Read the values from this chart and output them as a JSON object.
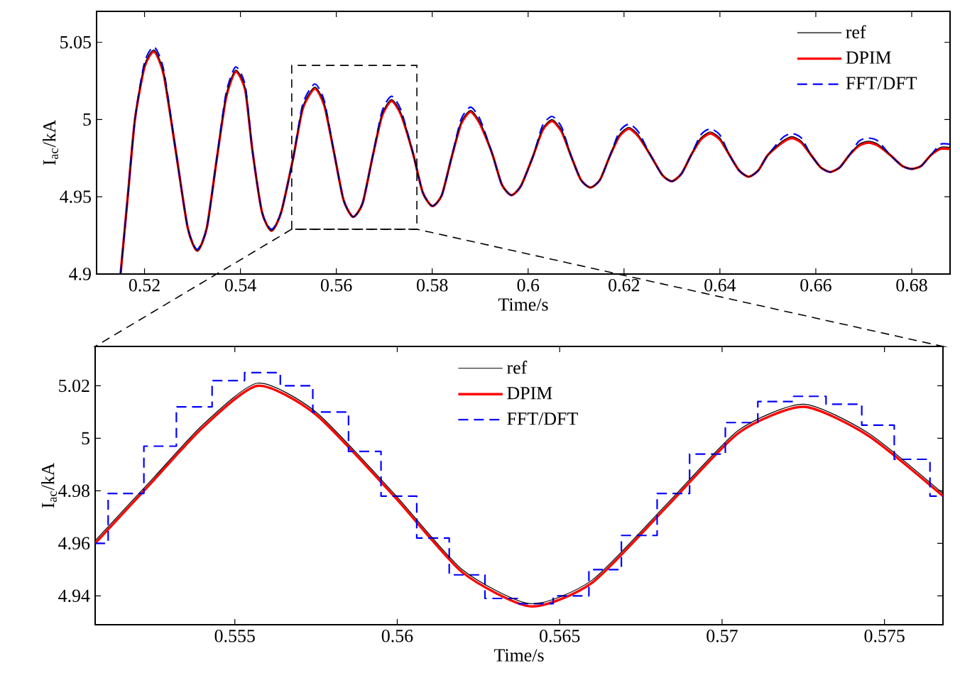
{
  "chart_data": [
    {
      "type": "line",
      "xlabel": "Time/s",
      "ylabel": "I$_{ac}$/kA",
      "xlim": [
        0.51,
        0.688
      ],
      "ylim": [
        4.9,
        5.07
      ],
      "xticks": [
        0.52,
        0.54,
        0.56,
        0.58,
        0.6,
        0.62,
        0.64,
        0.66,
        0.68
      ],
      "yticks": [
        4.9,
        4.95,
        5,
        5.05
      ],
      "grid": false,
      "legend": "top right",
      "x": [
        0.515,
        0.5165,
        0.518,
        0.52,
        0.522,
        0.524,
        0.5265,
        0.529,
        0.531,
        0.533,
        0.535,
        0.537,
        0.539,
        0.541,
        0.5425,
        0.5445,
        0.5465,
        0.5485,
        0.551,
        0.553,
        0.5555,
        0.5575,
        0.5595,
        0.5615,
        0.5635,
        0.5655,
        0.5675,
        0.5695,
        0.5715,
        0.5735,
        0.576,
        0.578,
        0.58,
        0.582,
        0.584,
        0.586,
        0.588,
        0.59,
        0.5925,
        0.5945,
        0.5965,
        0.5985,
        0.601,
        0.603,
        0.605,
        0.607,
        0.609,
        0.611,
        0.613,
        0.615,
        0.617,
        0.619,
        0.621,
        0.623,
        0.6255,
        0.628,
        0.63,
        0.632,
        0.634,
        0.636,
        0.638,
        0.64,
        0.642,
        0.644,
        0.646,
        0.648,
        0.65,
        0.653,
        0.655,
        0.657,
        0.659,
        0.661,
        0.663,
        0.665,
        0.667,
        0.669,
        0.671,
        0.673,
        0.6755,
        0.678,
        0.68,
        0.682,
        0.684,
        0.686,
        0.688
      ],
      "series": [
        {
          "name": "ref",
          "color": "#000000",
          "line_style": "solid",
          "values": [
            4.9,
            4.95,
            5.0,
            5.035,
            5.045,
            5.03,
            4.98,
            4.93,
            4.915,
            4.93,
            4.973,
            5.015,
            5.032,
            5.02,
            4.98,
            4.94,
            4.928,
            4.94,
            4.975,
            5.008,
            5.021,
            5.01,
            4.979,
            4.948,
            4.937,
            4.946,
            4.975,
            5.003,
            5.013,
            5.004,
            4.978,
            4.953,
            4.944,
            4.951,
            4.975,
            4.998,
            5.006,
            4.998,
            4.978,
            4.958,
            4.951,
            4.957,
            4.976,
            4.994,
            5.0,
            4.993,
            4.976,
            4.961,
            4.956,
            4.961,
            4.976,
            4.99,
            4.995,
            4.99,
            4.977,
            4.964,
            4.96,
            4.965,
            4.977,
            4.988,
            4.992,
            4.988,
            4.977,
            4.967,
            4.963,
            4.967,
            4.977,
            4.986,
            4.989,
            4.986,
            4.977,
            4.969,
            4.966,
            4.969,
            4.977,
            4.984,
            4.986,
            4.984,
            4.977,
            4.97,
            4.968,
            4.97,
            4.977,
            4.982,
            4.982
          ]
        },
        {
          "name": "DPIM",
          "color": "#ff0000",
          "line_style": "solid",
          "values": [
            4.9,
            4.95,
            5.0,
            5.034,
            5.044,
            5.029,
            4.98,
            4.93,
            4.915,
            4.93,
            4.973,
            5.014,
            5.031,
            5.019,
            4.98,
            4.94,
            4.928,
            4.94,
            4.975,
            5.007,
            5.02,
            5.009,
            4.979,
            4.948,
            4.937,
            4.946,
            4.975,
            5.002,
            5.012,
            5.003,
            4.978,
            4.953,
            4.944,
            4.951,
            4.975,
            4.997,
            5.005,
            4.997,
            4.978,
            4.958,
            4.951,
            4.957,
            4.976,
            4.993,
            4.999,
            4.992,
            4.976,
            4.961,
            4.956,
            4.961,
            4.976,
            4.989,
            4.994,
            4.989,
            4.977,
            4.964,
            4.96,
            4.965,
            4.977,
            4.987,
            4.991,
            4.987,
            4.977,
            4.967,
            4.963,
            4.967,
            4.977,
            4.985,
            4.988,
            4.985,
            4.977,
            4.969,
            4.966,
            4.969,
            4.977,
            4.983,
            4.985,
            4.983,
            4.977,
            4.97,
            4.968,
            4.97,
            4.977,
            4.981,
            4.981
          ]
        },
        {
          "name": "FFT/DFT",
          "color": "#0000ff",
          "line_style": "dashed",
          "values": [
            4.9,
            4.95,
            5.0,
            5.037,
            5.047,
            5.032,
            4.98,
            4.93,
            4.916,
            4.93,
            4.973,
            5.017,
            5.034,
            5.022,
            4.98,
            4.94,
            4.929,
            4.94,
            4.975,
            5.01,
            5.023,
            5.012,
            4.979,
            4.948,
            4.937,
            4.946,
            4.975,
            5.005,
            5.015,
            5.006,
            4.978,
            4.953,
            4.944,
            4.951,
            4.975,
            5.0,
            5.008,
            5.0,
            4.978,
            4.958,
            4.951,
            4.957,
            4.976,
            4.996,
            5.002,
            4.995,
            4.976,
            4.961,
            4.956,
            4.961,
            4.976,
            4.992,
            4.997,
            4.992,
            4.977,
            4.964,
            4.96,
            4.965,
            4.977,
            4.99,
            4.994,
            4.99,
            4.977,
            4.967,
            4.963,
            4.967,
            4.977,
            4.988,
            4.991,
            4.988,
            4.977,
            4.969,
            4.966,
            4.969,
            4.977,
            4.986,
            4.988,
            4.986,
            4.977,
            4.97,
            4.968,
            4.97,
            4.977,
            4.984,
            4.984
          ]
        }
      ]
    },
    {
      "type": "line",
      "xlabel": "Time/s",
      "ylabel": "I$_{ac}$/kA",
      "xlim": [
        0.5507,
        0.5768
      ],
      "ylim": [
        4.929,
        5.035
      ],
      "xticks": [
        0.555,
        0.56,
        0.565,
        0.57,
        0.575
      ],
      "yticks": [
        4.94,
        4.96,
        4.98,
        5,
        5.02
      ],
      "grid": false,
      "legend": "top",
      "series": [
        {
          "name": "ref",
          "color": "#000000",
          "line_style": "solid",
          "x": [
            0.5507,
            0.5525,
            0.554,
            0.5557,
            0.5575,
            0.5599,
            0.562,
            0.5641,
            0.566,
            0.5683,
            0.5705,
            0.5725,
            0.5745,
            0.5768
          ],
          "values": [
            4.961,
            4.985,
            5.005,
            5.021,
            5.01,
            4.979,
            4.95,
            4.937,
            4.946,
            4.975,
            5.003,
            5.013,
            5.002,
            4.979
          ]
        },
        {
          "name": "DPIM",
          "color": "#ff0000",
          "line_style": "solid",
          "x": [
            0.5507,
            0.5525,
            0.554,
            0.5557,
            0.5575,
            0.5599,
            0.562,
            0.5641,
            0.566,
            0.5683,
            0.5705,
            0.5725,
            0.5745,
            0.5768
          ],
          "values": [
            4.96,
            4.984,
            5.004,
            5.02,
            5.009,
            4.978,
            4.949,
            4.936,
            4.945,
            4.974,
            5.002,
            5.012,
            5.001,
            4.978
          ]
        },
        {
          "name": "FFT/DFT",
          "type": "step",
          "color": "#0000ff",
          "line_style": "dashed",
          "x": [
            0.5507,
            0.5511,
            0.5522,
            0.5532,
            0.5543,
            0.5553,
            0.5564,
            0.5574,
            0.5585,
            0.5595,
            0.5606,
            0.5616,
            0.5627,
            0.5637,
            0.5648,
            0.5659,
            0.5669,
            0.568,
            0.569,
            0.5701,
            0.5711,
            0.5722,
            0.5732,
            0.5743,
            0.5753,
            0.5764,
            0.5768
          ],
          "values": [
            4.96,
            4.979,
            4.997,
            5.012,
            5.022,
            5.025,
            5.02,
            5.01,
            4.995,
            4.978,
            4.962,
            4.948,
            4.939,
            4.937,
            4.94,
            4.95,
            4.963,
            4.979,
            4.994,
            5.006,
            5.014,
            5.016,
            5.013,
            5.005,
            4.992,
            4.978,
            4.978
          ]
        }
      ]
    }
  ]
}
